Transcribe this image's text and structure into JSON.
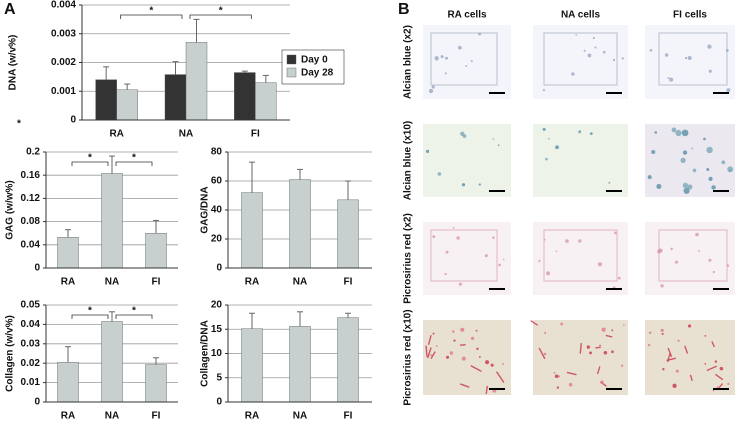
{
  "panel_labels": [
    "A",
    "B"
  ],
  "annotations": [
    "*"
  ],
  "chart_data": [
    {
      "type": "bar",
      "y_label": "DNA (w/v%)",
      "categories": [
        "RA",
        "NA",
        "FI"
      ],
      "series": [
        {
          "name": "Day 0",
          "color": "#333333",
          "values": [
            0.0014,
            0.00158,
            0.00165
          ],
          "errors": [
            0.00045,
            0.00045,
            5e-05
          ]
        },
        {
          "name": "Day 28",
          "color": "#c8cfcf",
          "values": [
            0.00105,
            0.0027,
            0.0013
          ],
          "errors": [
            0.0002,
            0.0008,
            0.00025
          ]
        }
      ],
      "ylim": [
        0,
        0.004
      ],
      "yticks": [
        0,
        0.001,
        0.002,
        0.003,
        0.004
      ],
      "grid": true,
      "legend": "right",
      "significance": [
        "*",
        "*"
      ]
    },
    {
      "type": "bar",
      "y_label": "GAG (w/w%)",
      "categories": [
        "RA",
        "NA",
        "FI"
      ],
      "color": "#c8cfcf",
      "values": [
        0.053,
        0.163,
        0.06
      ],
      "errors": [
        0.013,
        0.03,
        0.022
      ],
      "ylim": [
        0,
        0.2
      ],
      "yticks": [
        0,
        0.04,
        0.08,
        0.12,
        0.16,
        0.2
      ],
      "grid": true,
      "significance": [
        "*",
        "*"
      ]
    },
    {
      "type": "bar",
      "y_label": "GAG/DNA",
      "categories": [
        "RA",
        "NA",
        "FI"
      ],
      "color": "#c8cfcf",
      "values": [
        52,
        61,
        47
      ],
      "errors": [
        21,
        7,
        13
      ],
      "ylim": [
        0,
        80
      ],
      "yticks": [
        0,
        20,
        40,
        60,
        80
      ],
      "grid": true
    },
    {
      "type": "bar",
      "y_label": "Collagen (w/v%)",
      "categories": [
        "RA",
        "NA",
        "FI"
      ],
      "color": "#c8cfcf",
      "values": [
        0.0205,
        0.0415,
        0.0193
      ],
      "errors": [
        0.008,
        0.005,
        0.0035
      ],
      "ylim": [
        0,
        0.05
      ],
      "yticks": [
        0,
        0.01,
        0.02,
        0.03,
        0.04,
        0.05
      ],
      "grid": true,
      "significance": [
        "*",
        "*"
      ]
    },
    {
      "type": "bar",
      "y_label": "Collagen/DNA",
      "categories": [
        "RA",
        "NA",
        "FI"
      ],
      "color": "#c8cfcf",
      "values": [
        15.1,
        15.6,
        17.4
      ],
      "errors": [
        3.2,
        3.0,
        0.9
      ],
      "ylim": [
        0,
        20
      ],
      "yticks": [
        0,
        5,
        10,
        15,
        20
      ],
      "grid": true
    }
  ],
  "images": {
    "columns": [
      "RA cells",
      "NA cells",
      "FI cells"
    ],
    "rows": [
      "Alcian blue (x2)",
      "Alcian blue (x10)",
      "Picrosirius red (x2)",
      "Picrosirius red (x10)"
    ]
  }
}
